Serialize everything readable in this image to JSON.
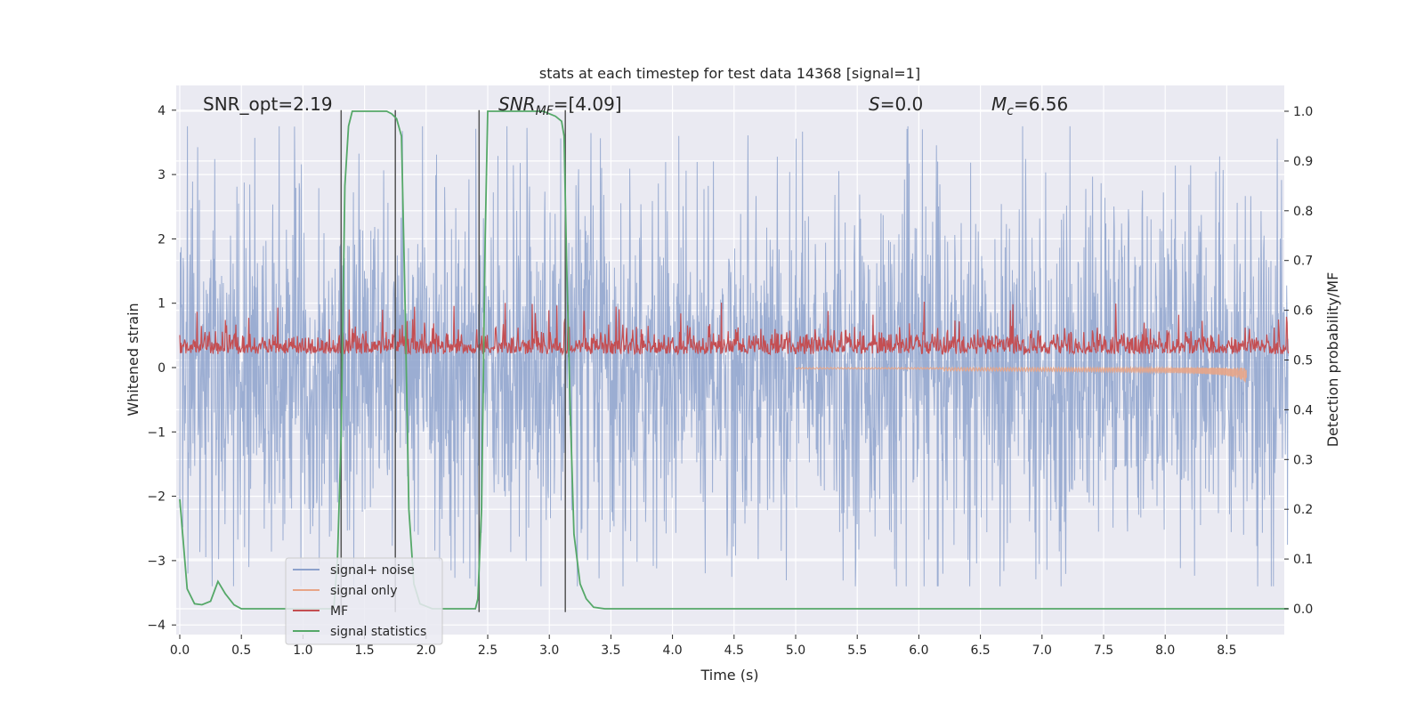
{
  "chart_data": {
    "type": "line",
    "title": "stats at each timestep for test data 14368 [signal=1]",
    "xlabel": "Time (s)",
    "ylabel_left": "Whitened strain",
    "ylabel_right": "Detection probability/MF",
    "xlim": [
      0.0,
      9.0
    ],
    "ylim_left": [
      -4.3,
      4.4
    ],
    "ylim_right": [
      -0.05,
      1.05
    ],
    "x_ticks": [
      "0.0",
      "0.5",
      "1.0",
      "1.5",
      "2.0",
      "2.5",
      "3.0",
      "3.5",
      "4.0",
      "4.5",
      "5.0",
      "5.5",
      "6.0",
      "6.5",
      "7.0",
      "7.5",
      "8.0",
      "8.5"
    ],
    "y_ticks_left": [
      "4",
      "3",
      "2",
      "1",
      "0",
      "−1",
      "−2",
      "−3",
      "−4"
    ],
    "y_ticks_right": [
      "1.0",
      "0.9",
      "0.8",
      "0.7",
      "0.6",
      "0.5",
      "0.4",
      "0.3",
      "0.2",
      "0.1",
      "0.0"
    ],
    "grid": true,
    "legend_position": "lower-left",
    "annotations": {
      "snr_opt": "SNR_opt=2.19",
      "snr_mf_prefix": "SNR",
      "snr_mf_sub": "MF",
      "snr_mf_value": "=[4.09]",
      "s_label": "S",
      "s_value": "=0.0",
      "mc_label": "M",
      "mc_sub": "c",
      "mc_value": "=6.56"
    },
    "series": [
      {
        "name": "signal+ noise",
        "color": "#8da2cd",
        "axis": "left",
        "envelope": {
          "typical_amplitude": 1.5,
          "max": 3.75,
          "min": -3.4
        }
      },
      {
        "name": "signal only",
        "color": "#e8a587",
        "axis": "left",
        "chirp_end_time": 8.66,
        "min_value": -0.28
      },
      {
        "name": "MF",
        "color": "#c44e52",
        "axis": "right",
        "typical_range": [
          0.5,
          0.6
        ],
        "max": 0.62
      },
      {
        "name": "signal statistics",
        "color": "#55a868",
        "axis": "right",
        "x": [
          0.0,
          0.06,
          0.12,
          0.18,
          0.25,
          0.31,
          0.37,
          0.44,
          0.5,
          1.0,
          1.2,
          1.25,
          1.28,
          1.31,
          1.34,
          1.37,
          1.4,
          1.5,
          1.6,
          1.68,
          1.72,
          1.76,
          1.8,
          1.83,
          1.86,
          1.9,
          1.95,
          2.0,
          2.05,
          2.4,
          2.42,
          2.45,
          2.48,
          2.5,
          2.55,
          2.65,
          2.8,
          2.95,
          3.05,
          3.1,
          3.12,
          3.14,
          3.17,
          3.2,
          3.25,
          3.3,
          3.36,
          3.45,
          9.0
        ],
        "y": [
          0.22,
          0.04,
          0.01,
          0.008,
          0.015,
          0.055,
          0.03,
          0.008,
          0.0,
          0.0,
          0.0,
          0.0,
          0.1,
          0.35,
          0.85,
          0.97,
          1.0,
          1.0,
          1.0,
          1.0,
          0.995,
          0.985,
          0.95,
          0.6,
          0.2,
          0.05,
          0.01,
          0.005,
          0.0,
          0.0,
          0.02,
          0.2,
          0.75,
          1.0,
          1.0,
          1.0,
          1.0,
          1.0,
          0.99,
          0.98,
          0.95,
          0.7,
          0.4,
          0.15,
          0.05,
          0.02,
          0.003,
          0.0,
          0.0
        ]
      },
      {
        "name": "vertical markers",
        "color": "#555555",
        "axis": "left",
        "x": [
          1.31,
          1.75,
          2.43,
          3.13
        ],
        "y_range": [
          -3.8,
          4.0
        ]
      }
    ]
  }
}
